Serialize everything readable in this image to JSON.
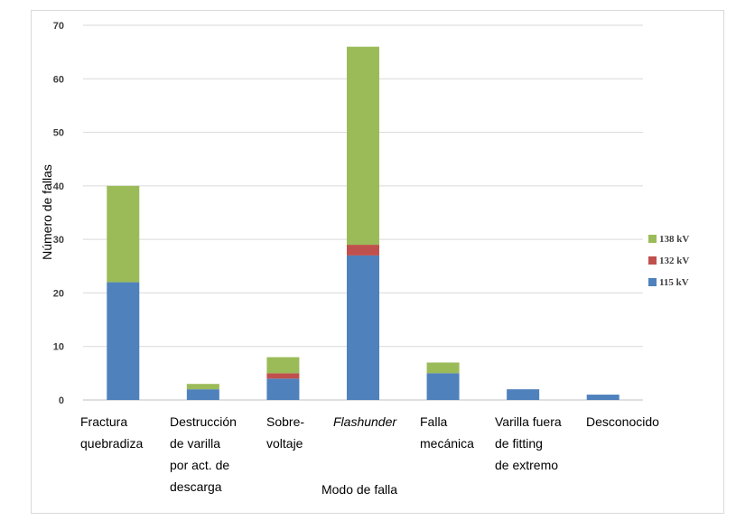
{
  "chart_data": {
    "type": "bar",
    "stacked": true,
    "title": "",
    "xlabel": "Modo de falla",
    "ylabel": "Número de fallas",
    "ylim": [
      0,
      70
    ],
    "yticks": [
      0,
      10,
      20,
      30,
      40,
      50,
      60,
      70
    ],
    "grid": true,
    "legend_position": "right",
    "categories": [
      [
        "Fractura",
        "quebradiza"
      ],
      [
        "Destrucción",
        "de varilla",
        "por act. de",
        "descarga"
      ],
      [
        "Sobre-",
        "voltaje"
      ],
      [
        "Flashunder"
      ],
      [
        "Falla",
        "mecánica"
      ],
      [
        "Varilla fuera",
        "de fitting",
        "de extremo"
      ],
      [
        "Desconocido"
      ]
    ],
    "italic_categories": [
      3
    ],
    "series": [
      {
        "name": "115 kV",
        "color": "#4f81bd",
        "values": [
          22,
          2,
          4,
          27,
          5,
          2,
          1
        ]
      },
      {
        "name": "132 kV",
        "color": "#c0504d",
        "values": [
          0,
          0,
          1,
          2,
          0,
          0,
          0
        ]
      },
      {
        "name": "138 kV",
        "color": "#9bbb59",
        "values": [
          18,
          1,
          3,
          37,
          2,
          0,
          0
        ]
      }
    ],
    "legend_order": [
      "138 kV",
      "132 kV",
      "115 kV"
    ]
  }
}
